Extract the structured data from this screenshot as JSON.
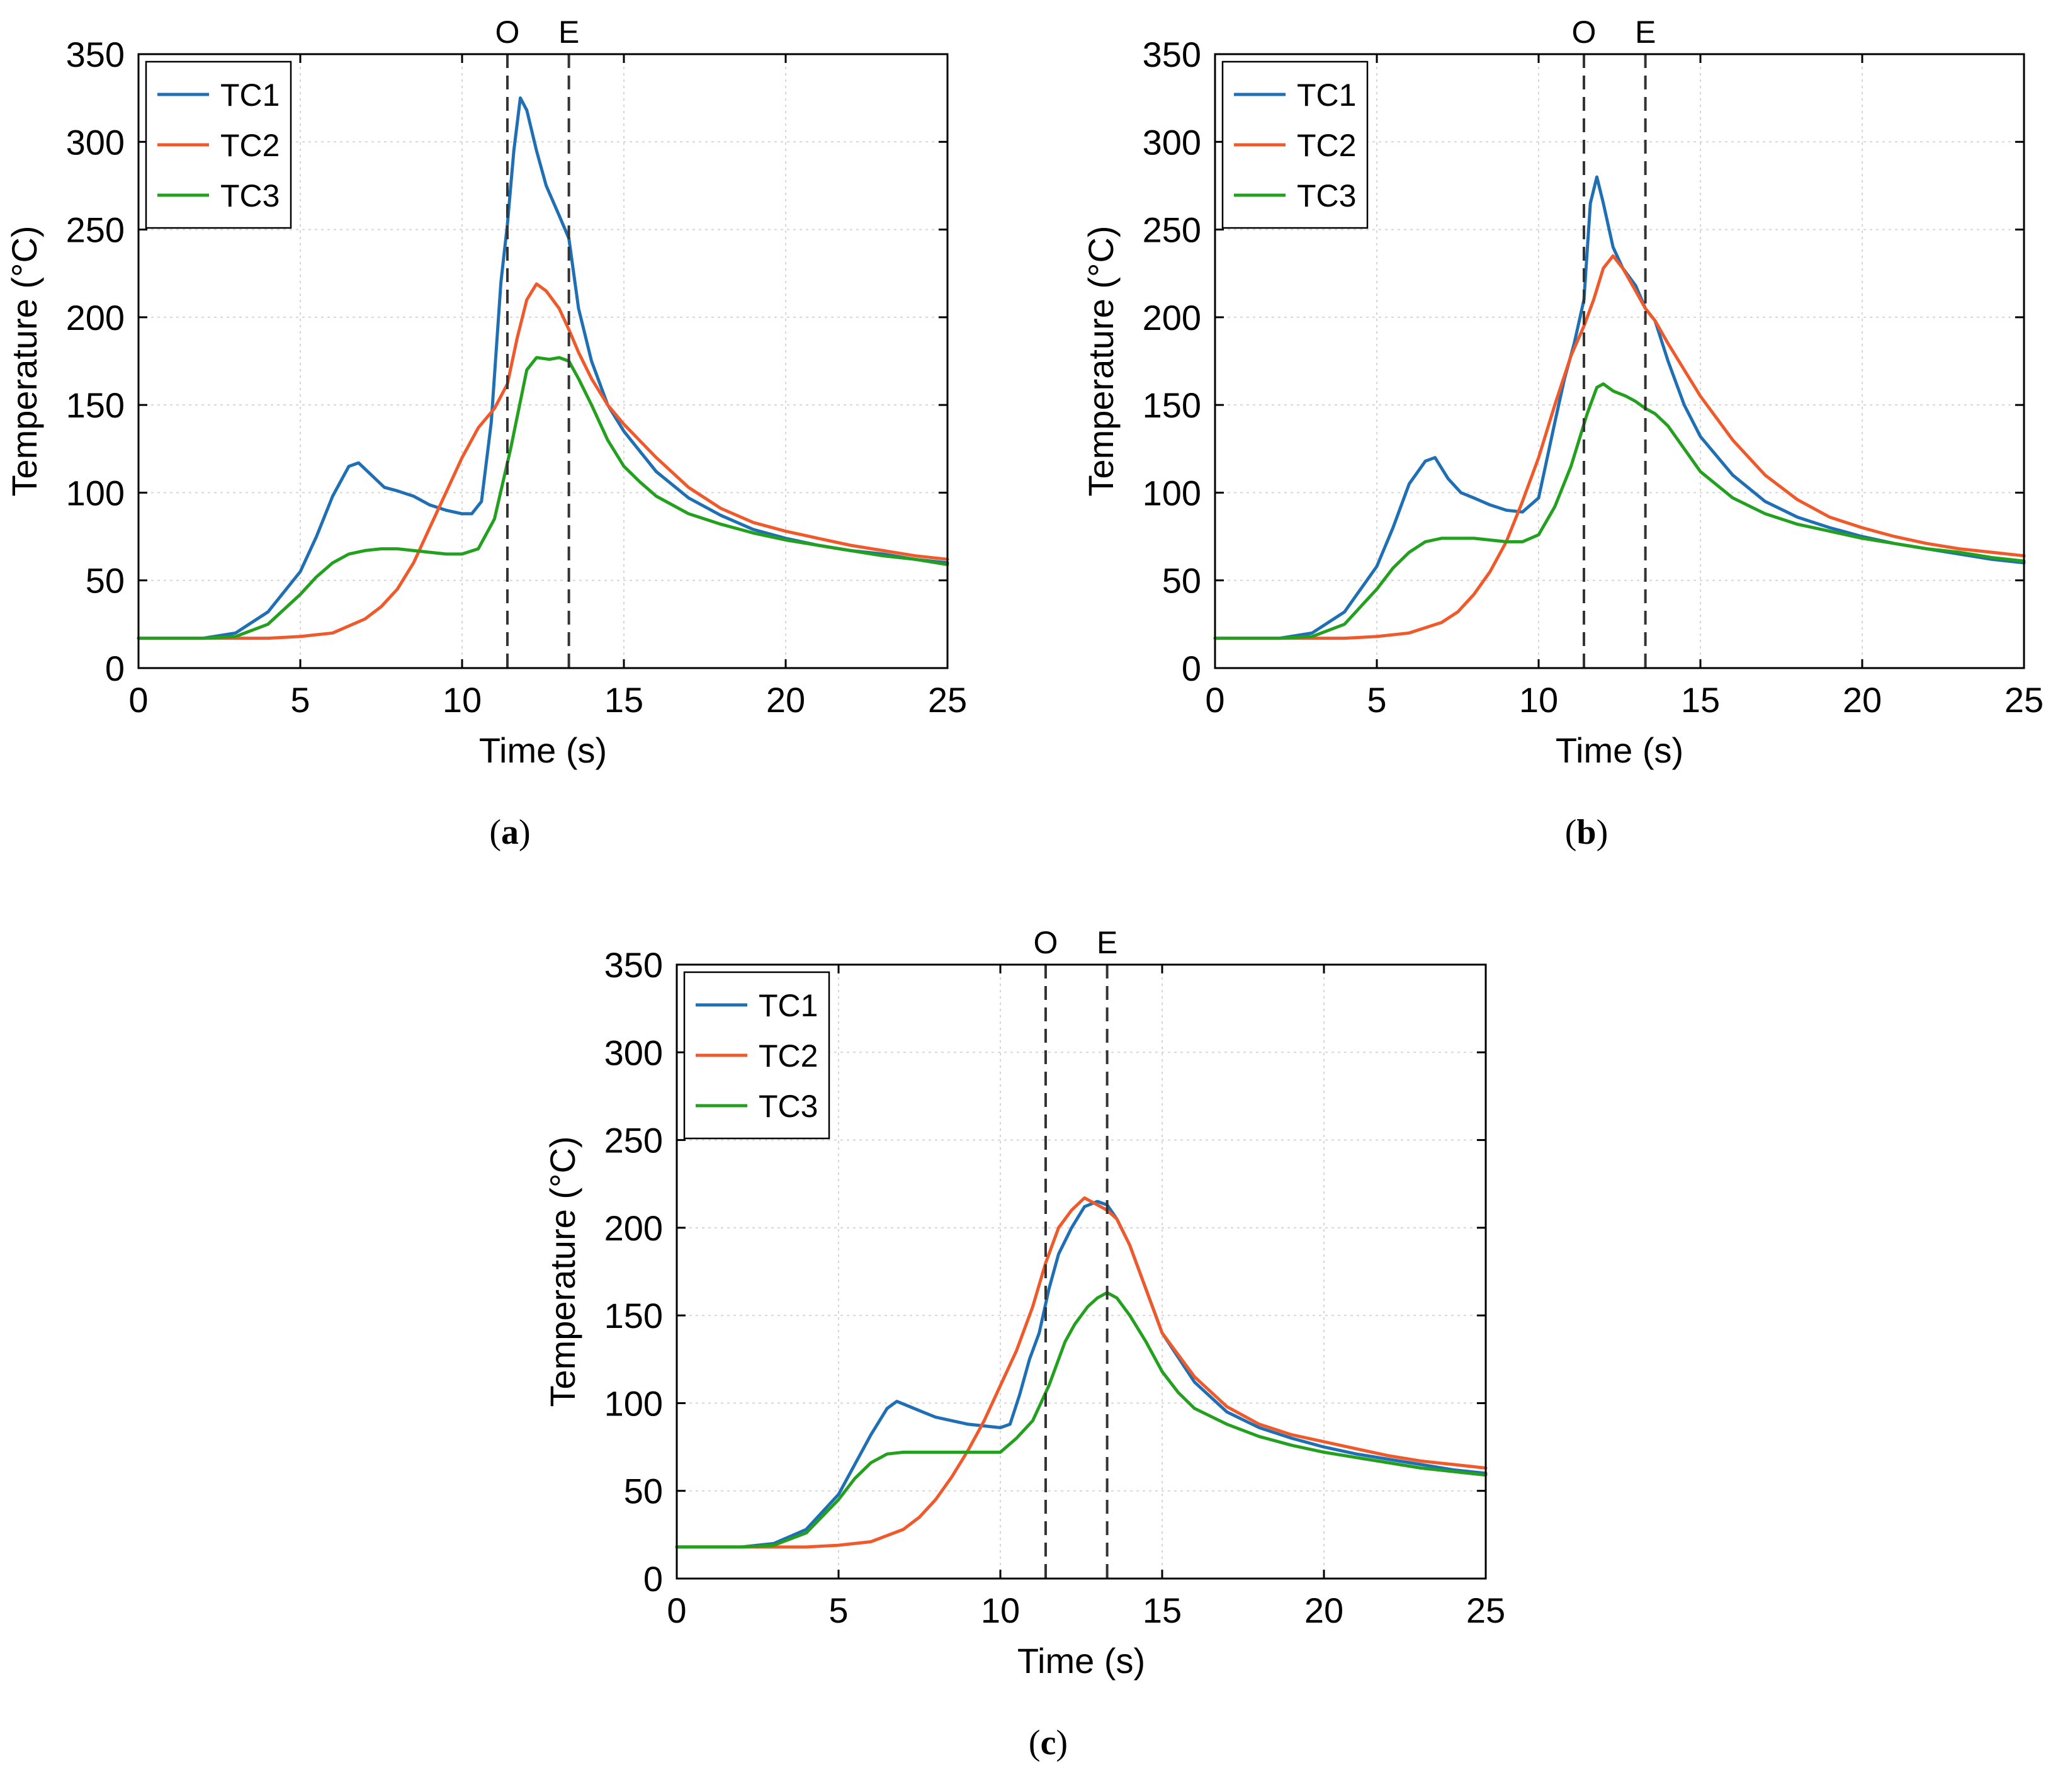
{
  "colors": {
    "TC1": "#1f6fb4",
    "TC2": "#f0592a",
    "TC3": "#23a11e",
    "grid": "#d7d7d7",
    "marker": "#333333"
  },
  "chart_data": [
    {
      "id": "a",
      "type": "line",
      "caption_open": "(",
      "caption_label": "a",
      "caption_close": ")",
      "xlabel": "Time (s)",
      "ylabel": "Temperature (°C)",
      "xlim": [
        0,
        25
      ],
      "ylim": [
        0,
        350
      ],
      "xticks": [
        0,
        5,
        10,
        15,
        20,
        25
      ],
      "yticks": [
        0,
        50,
        100,
        150,
        200,
        250,
        300,
        350
      ],
      "grid": true,
      "legend_position": "top-left",
      "markers": [
        {
          "label": "O",
          "x": 11.4
        },
        {
          "label": "E",
          "x": 13.3
        }
      ],
      "series": [
        {
          "name": "TC1",
          "x": [
            0,
            2,
            3,
            4,
            5,
            5.5,
            6,
            6.5,
            6.8,
            7.2,
            7.6,
            8,
            8.5,
            9,
            9.5,
            10,
            10.3,
            10.6,
            10.9,
            11.2,
            11.4,
            11.6,
            11.8,
            12,
            12.3,
            12.6,
            13,
            13.3,
            13.6,
            14,
            14.5,
            15,
            16,
            17,
            18,
            19,
            20,
            21,
            22,
            23,
            24,
            25
          ],
          "y": [
            17,
            17,
            20,
            32,
            55,
            75,
            98,
            115,
            117,
            110,
            103,
            101,
            98,
            93,
            90,
            88,
            88,
            95,
            140,
            220,
            253,
            295,
            325,
            318,
            295,
            275,
            258,
            245,
            205,
            175,
            150,
            135,
            112,
            97,
            87,
            79,
            74,
            70,
            67,
            65,
            62,
            60
          ]
        },
        {
          "name": "TC2",
          "x": [
            0,
            2,
            4,
            5,
            6,
            7,
            7.5,
            8,
            8.5,
            9,
            9.5,
            10,
            10.5,
            11,
            11.4,
            11.7,
            12,
            12.3,
            12.6,
            13,
            13.3,
            13.6,
            14,
            14.5,
            15,
            16,
            17,
            18,
            19,
            20,
            21,
            22,
            23,
            24,
            25
          ],
          "y": [
            17,
            17,
            17,
            18,
            20,
            28,
            35,
            45,
            60,
            80,
            100,
            120,
            137,
            148,
            162,
            188,
            210,
            219,
            215,
            205,
            193,
            180,
            165,
            150,
            139,
            120,
            103,
            91,
            83,
            78,
            74,
            70,
            67,
            64,
            62
          ]
        },
        {
          "name": "TC3",
          "x": [
            0,
            2,
            3,
            4,
            5,
            5.5,
            6,
            6.5,
            7,
            7.5,
            8,
            8.5,
            9,
            9.5,
            10,
            10.5,
            11,
            11.5,
            12,
            12.3,
            12.7,
            13,
            13.3,
            13.6,
            14,
            14.5,
            15,
            15.5,
            16,
            17,
            18,
            19,
            20,
            21,
            22,
            23,
            24,
            25
          ],
          "y": [
            17,
            17,
            18,
            25,
            42,
            52,
            60,
            65,
            67,
            68,
            68,
            67,
            66,
            65,
            65,
            68,
            85,
            125,
            170,
            177,
            176,
            177,
            175,
            165,
            150,
            130,
            115,
            106,
            98,
            88,
            82,
            77,
            73,
            70,
            67,
            64,
            62,
            59
          ]
        }
      ]
    },
    {
      "id": "b",
      "type": "line",
      "caption_open": "(",
      "caption_label": "b",
      "caption_close": ")",
      "xlabel": "Time (s)",
      "ylabel": "Temperature (°C)",
      "xlim": [
        0,
        25
      ],
      "ylim": [
        0,
        350
      ],
      "xticks": [
        0,
        5,
        10,
        15,
        20,
        25
      ],
      "yticks": [
        0,
        50,
        100,
        150,
        200,
        250,
        300,
        350
      ],
      "grid": true,
      "legend_position": "top-left",
      "markers": [
        {
          "label": "O",
          "x": 11.4
        },
        {
          "label": "E",
          "x": 13.3
        }
      ],
      "series": [
        {
          "name": "TC1",
          "x": [
            0,
            2,
            3,
            4,
            5,
            5.5,
            6,
            6.5,
            6.8,
            7.2,
            7.6,
            8,
            8.5,
            9,
            9.5,
            10,
            10.5,
            10.8,
            11.1,
            11.4,
            11.6,
            11.8,
            12,
            12.3,
            12.6,
            13,
            13.3,
            13.6,
            14,
            14.5,
            15,
            16,
            17,
            18,
            19,
            20,
            21,
            22,
            23,
            24,
            25
          ],
          "y": [
            17,
            17,
            20,
            32,
            58,
            80,
            105,
            118,
            120,
            108,
            100,
            97,
            93,
            90,
            89,
            97,
            140,
            165,
            185,
            210,
            265,
            280,
            265,
            240,
            228,
            218,
            205,
            198,
            175,
            150,
            132,
            110,
            95,
            86,
            80,
            75,
            71,
            68,
            65,
            62,
            60
          ]
        },
        {
          "name": "TC2",
          "x": [
            0,
            2,
            4,
            5,
            6,
            7,
            7.5,
            8,
            8.5,
            9,
            9.5,
            10,
            10.5,
            11,
            11.4,
            11.7,
            12,
            12.3,
            12.6,
            13,
            13.3,
            13.6,
            14,
            14.5,
            15,
            16,
            17,
            18,
            19,
            20,
            21,
            22,
            23,
            24,
            25
          ],
          "y": [
            17,
            17,
            17,
            18,
            20,
            26,
            32,
            42,
            55,
            72,
            95,
            120,
            150,
            178,
            195,
            210,
            228,
            235,
            228,
            215,
            205,
            198,
            185,
            170,
            155,
            130,
            110,
            96,
            86,
            80,
            75,
            71,
            68,
            66,
            64
          ]
        },
        {
          "name": "TC3",
          "x": [
            0,
            2,
            3,
            4,
            5,
            5.5,
            6,
            6.5,
            7,
            7.5,
            8,
            8.5,
            9,
            9.5,
            10,
            10.5,
            11,
            11.5,
            11.8,
            12,
            12.3,
            12.7,
            13,
            13.3,
            13.6,
            14,
            14.5,
            15,
            16,
            17,
            18,
            19,
            20,
            21,
            22,
            23,
            24,
            25
          ],
          "y": [
            17,
            17,
            18,
            25,
            45,
            57,
            66,
            72,
            74,
            74,
            74,
            73,
            72,
            72,
            76,
            92,
            115,
            145,
            160,
            162,
            158,
            155,
            152,
            148,
            145,
            138,
            125,
            112,
            97,
            88,
            82,
            78,
            74,
            71,
            68,
            66,
            63,
            61
          ]
        }
      ]
    },
    {
      "id": "c",
      "type": "line",
      "caption_open": "(",
      "caption_label": "c",
      "caption_close": ")",
      "xlabel": "Time (s)",
      "ylabel": "Temperature (°C)",
      "xlim": [
        0,
        25
      ],
      "ylim": [
        0,
        350
      ],
      "xticks": [
        0,
        5,
        10,
        15,
        20,
        25
      ],
      "yticks": [
        0,
        50,
        100,
        150,
        200,
        250,
        300,
        350
      ],
      "grid": true,
      "legend_position": "top-left",
      "markers": [
        {
          "label": "O",
          "x": 11.4
        },
        {
          "label": "E",
          "x": 13.3
        }
      ],
      "series": [
        {
          "name": "TC1",
          "x": [
            0,
            2,
            3,
            4,
            5,
            5.5,
            6,
            6.5,
            6.8,
            7.2,
            7.6,
            8,
            8.5,
            9,
            9.5,
            10,
            10.3,
            10.6,
            10.9,
            11.2,
            11.5,
            11.8,
            12.2,
            12.6,
            13,
            13.3,
            13.6,
            14,
            14.5,
            15,
            16,
            17,
            18,
            19,
            20,
            21,
            22,
            23,
            24,
            25
          ],
          "y": [
            18,
            18,
            20,
            28,
            48,
            65,
            82,
            97,
            101,
            98,
            95,
            92,
            90,
            88,
            87,
            86,
            88,
            105,
            125,
            140,
            165,
            185,
            200,
            212,
            215,
            213,
            205,
            190,
            165,
            140,
            112,
            95,
            86,
            80,
            75,
            71,
            68,
            65,
            62,
            60
          ]
        },
        {
          "name": "TC2",
          "x": [
            0,
            2,
            4,
            5,
            6,
            7,
            7.5,
            8,
            8.5,
            9,
            9.5,
            10,
            10.5,
            11,
            11.4,
            11.8,
            12.2,
            12.6,
            13,
            13.3,
            13.6,
            14,
            14.5,
            15,
            16,
            17,
            18,
            19,
            20,
            21,
            22,
            23,
            24,
            25
          ],
          "y": [
            18,
            18,
            18,
            19,
            21,
            28,
            35,
            45,
            58,
            73,
            90,
            110,
            130,
            155,
            180,
            200,
            210,
            217,
            213,
            210,
            205,
            190,
            165,
            140,
            115,
            98,
            88,
            82,
            78,
            74,
            70,
            67,
            65,
            63
          ]
        },
        {
          "name": "TC3",
          "x": [
            0,
            2,
            3,
            4,
            5,
            5.5,
            6,
            6.5,
            7,
            7.5,
            8,
            8.5,
            9,
            9.5,
            10,
            10.5,
            11,
            11.5,
            12,
            12.3,
            12.7,
            13,
            13.3,
            13.6,
            14,
            14.5,
            15,
            15.5,
            16,
            17,
            18,
            19,
            20,
            21,
            22,
            23,
            24,
            25
          ],
          "y": [
            18,
            18,
            19,
            26,
            45,
            57,
            66,
            71,
            72,
            72,
            72,
            72,
            72,
            72,
            72,
            80,
            90,
            110,
            135,
            145,
            155,
            160,
            163,
            160,
            150,
            135,
            118,
            106,
            97,
            88,
            81,
            76,
            72,
            69,
            66,
            63,
            61,
            59
          ]
        }
      ]
    }
  ]
}
